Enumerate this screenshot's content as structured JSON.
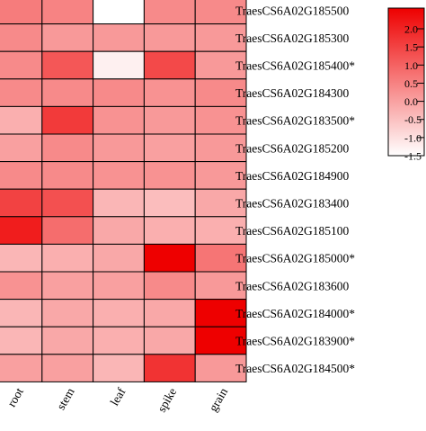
{
  "chart_data": {
    "type": "heatmap",
    "title": "",
    "xlabel": "",
    "ylabel": "",
    "columns": [
      "root",
      "stem",
      "leaf",
      "spike",
      "grain"
    ],
    "rows": [
      "TraesCS6A02G185500",
      "TraesCS6A02G185300",
      "TraesCS6A02G185400*",
      "TraesCS6A02G184300",
      "TraesCS6A02G183500*",
      "TraesCS6A02G185200",
      "TraesCS6A02G184900",
      "TraesCS6A02G183400",
      "TraesCS6A02G185100",
      "TraesCS6A02G185000*",
      "TraesCS6A02G183600",
      "TraesCS6A02G184000*",
      "TraesCS6A02G183900*",
      "TraesCS6A02G184500*"
    ],
    "values": [
      [
        0.3,
        0.2,
        -1.5,
        0.1,
        0.1
      ],
      [
        0.1,
        -0.1,
        -0.1,
        -0.1,
        -0.1
      ],
      [
        0.1,
        0.8,
        -1.3,
        1.0,
        -0.1
      ],
      [
        0.1,
        0.1,
        0.1,
        0.0,
        0.1
      ],
      [
        -0.4,
        1.2,
        0.0,
        -0.1,
        0.0
      ],
      [
        -0.2,
        0.1,
        -0.1,
        -0.2,
        -0.1
      ],
      [
        0.1,
        0.1,
        0.0,
        0.0,
        -0.1
      ],
      [
        1.1,
        0.9,
        -0.5,
        -0.6,
        -0.3
      ],
      [
        1.6,
        0.5,
        -0.3,
        -0.4,
        -0.4
      ],
      [
        -0.5,
        -0.4,
        -0.3,
        2.0,
        0.4
      ],
      [
        0.0,
        -0.2,
        -0.2,
        0.1,
        -0.1
      ],
      [
        -0.5,
        -0.3,
        -0.4,
        -0.3,
        2.0
      ],
      [
        -0.5,
        -0.3,
        -0.4,
        -0.3,
        2.0
      ],
      [
        -0.2,
        -0.2,
        -0.5,
        1.3,
        -0.1
      ]
    ],
    "color_scale": {
      "min": -1.5,
      "max": 2.0,
      "low_color": "#ffffff",
      "high_color": "#ee0000"
    },
    "colorbar_ticks": [
      "2.0",
      "1.5",
      "1.0",
      "0.5",
      "0.0",
      "-0.5",
      "-1.0",
      "-1.5"
    ]
  }
}
